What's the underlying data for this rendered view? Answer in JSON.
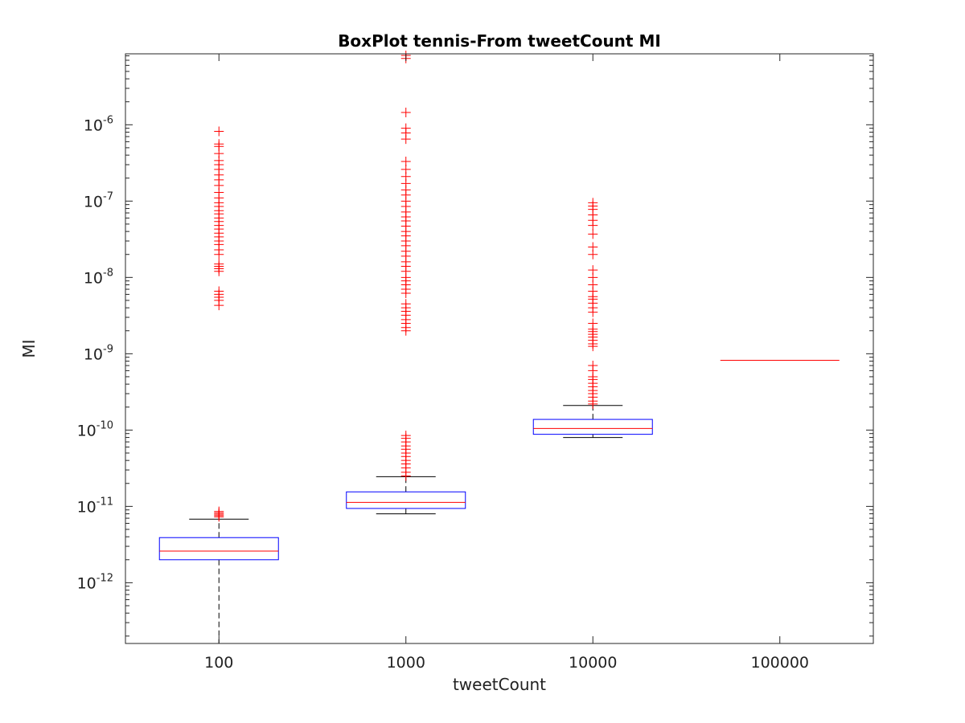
{
  "chart_data": {
    "type": "box",
    "title": "BoxPlot tennis-From tweetCount MI",
    "xlabel": "tweetCount",
    "ylabel": "MI",
    "yscale": "log",
    "ylim": [
      1.6e-13,
      8.5e-06
    ],
    "categories": [
      "100",
      "1000",
      "10000",
      "100000"
    ],
    "y_ticks": [
      {
        "value": 1e-12,
        "base": "10",
        "exp": "-12"
      },
      {
        "value": 1e-11,
        "base": "10",
        "exp": "-11"
      },
      {
        "value": 1e-10,
        "base": "10",
        "exp": "-10"
      },
      {
        "value": 1e-09,
        "base": "10",
        "exp": "-9"
      },
      {
        "value": 1e-08,
        "base": "10",
        "exp": "-8"
      },
      {
        "value": 1e-07,
        "base": "10",
        "exp": "-7"
      },
      {
        "value": 1e-06,
        "base": "10",
        "exp": "-6"
      }
    ],
    "boxes": [
      {
        "category": "100",
        "whisker_low": 1.6e-13,
        "q1": 2e-12,
        "median": 2.6e-12,
        "q3": 3.9e-12,
        "whisker_high": 6.8e-12,
        "outliers": [
          7.3e-12,
          7.6e-12,
          7.9e-12,
          8.2e-12,
          8.6e-12,
          4.3e-09,
          5e-09,
          5.5e-09,
          6e-09,
          6.6e-09,
          1.2e-08,
          1.3e-08,
          1.4e-08,
          1.5e-08,
          2e-08,
          2.3e-08,
          2.7e-08,
          3e-08,
          3.4e-08,
          3.8e-08,
          4.3e-08,
          4.8e-08,
          5.4e-08,
          6e-08,
          6.8e-08,
          7.5e-08,
          8.5e-08,
          9.5e-08,
          1.1e-07,
          1.3e-07,
          1.6e-07,
          1.9e-07,
          2.2e-07,
          2.6e-07,
          3e-07,
          3.4e-07,
          4.2e-07,
          5.2e-07,
          5.6e-07,
          8.2e-07
        ]
      },
      {
        "category": "1000",
        "whisker_low": 8e-12,
        "q1": 9.4e-12,
        "median": 1.13e-11,
        "q3": 1.55e-11,
        "whisker_high": 2.45e-11,
        "outliers": [
          2.5e-11,
          2.8e-11,
          3.2e-11,
          3.6e-11,
          4e-11,
          4.5e-11,
          5e-11,
          5.6e-11,
          6.2e-11,
          7e-11,
          7.8e-11,
          8.5e-11,
          2e-09,
          2.2e-09,
          2.5e-09,
          2.8e-09,
          3.2e-09,
          3.6e-09,
          4e-09,
          4.5e-09,
          6.2e-09,
          7e-09,
          8e-09,
          9e-09,
          1e-08,
          1.2e-08,
          1.4e-08,
          1.6e-08,
          1.9e-08,
          2.2e-08,
          2.6e-08,
          3e-08,
          3.5e-08,
          4e-08,
          4.7e-08,
          5.5e-08,
          6.2e-08,
          7.2e-08,
          8.5e-08,
          1e-07,
          1.2e-07,
          1.4e-07,
          1.7e-07,
          2.1e-07,
          2.6e-07,
          3.3e-07,
          6.5e-07,
          7.8e-07,
          9e-07,
          1.45e-06,
          7.4e-06,
          8.1e-06
        ]
      },
      {
        "category": "10000",
        "whisker_low": 8e-11,
        "q1": 8.8e-11,
        "median": 1.05e-10,
        "q3": 1.38e-10,
        "whisker_high": 2.1e-10,
        "outliers": [
          2.2e-10,
          2.4e-10,
          2.7e-10,
          3e-10,
          3.3e-10,
          3.7e-10,
          4.1e-10,
          4.6e-10,
          5e-10,
          6e-10,
          7e-10,
          1.25e-09,
          1.35e-09,
          1.5e-09,
          1.65e-09,
          1.8e-09,
          1.95e-09,
          2.1e-09,
          2.5e-09,
          3.5e-09,
          4e-09,
          4.6e-09,
          5.2e-09,
          5.6e-09,
          6.6e-09,
          8e-09,
          1e-08,
          1.25e-08,
          2e-08,
          2.5e-08,
          3.7e-08,
          4.8e-08,
          5.6e-08,
          6.6e-08,
          7.8e-08,
          8.6e-08,
          9.5e-08
        ]
      },
      {
        "category": "100000",
        "whisker_low": 8.2e-10,
        "q1": 8.2e-10,
        "median": 8.2e-10,
        "q3": 8.2e-10,
        "whisker_high": 8.2e-10,
        "outliers": []
      }
    ],
    "colors": {
      "box": "#0000ff",
      "median": "#ff0000",
      "whisker": "#000000",
      "outlier": "#ff0000",
      "axis": "#262626"
    },
    "grid": false,
    "legend": "none"
  }
}
